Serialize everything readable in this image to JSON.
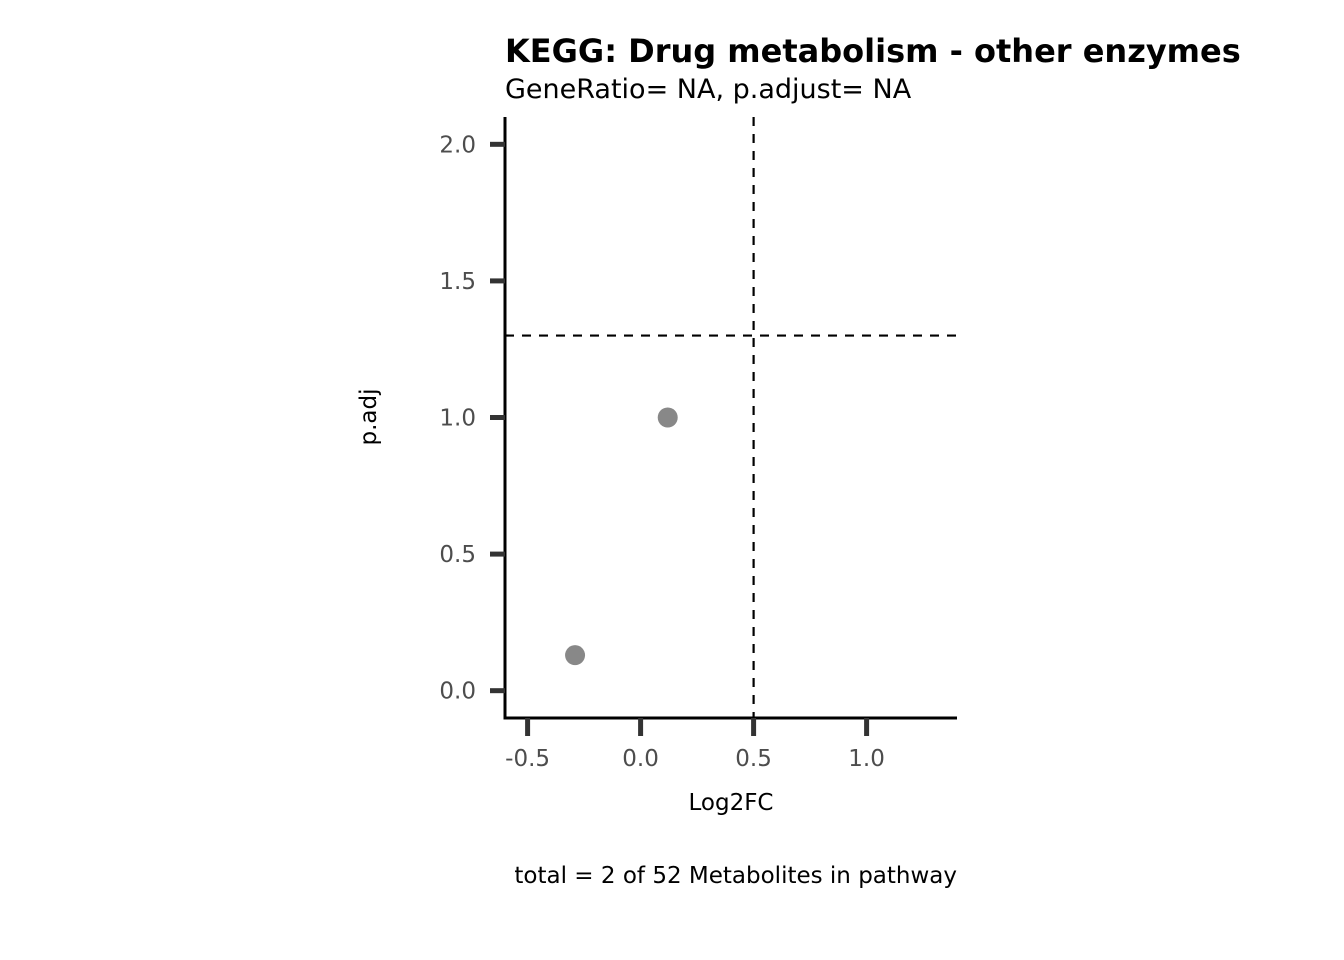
{
  "chart_data": {
    "type": "scatter",
    "title": "KEGG: Drug metabolism - other enzymes",
    "subtitle": "GeneRatio= NA, p.adjust= NA",
    "xlabel": "Log2FC",
    "ylabel": "p.adj",
    "caption": "total = 2 of 52 Metabolites in pathway",
    "xlim": [
      -0.6,
      1.4
    ],
    "ylim": [
      -0.1,
      2.1
    ],
    "x_ticks": [
      -0.5,
      0.0,
      0.5,
      1.0
    ],
    "x_tick_labels": [
      "-0.5",
      "0.0",
      "0.5",
      "1.0"
    ],
    "y_ticks": [
      0.0,
      0.5,
      1.0,
      1.5,
      2.0
    ],
    "y_tick_labels": [
      "0.0",
      "0.5",
      "1.0",
      "1.5",
      "2.0"
    ],
    "reference_lines": {
      "vertical_x": 0.5,
      "horizontal_y": 1.3
    },
    "grid": false,
    "point_color": "#888888",
    "points": [
      {
        "x": -0.29,
        "y": 0.13
      },
      {
        "x": 0.12,
        "y": 1.0
      }
    ]
  }
}
